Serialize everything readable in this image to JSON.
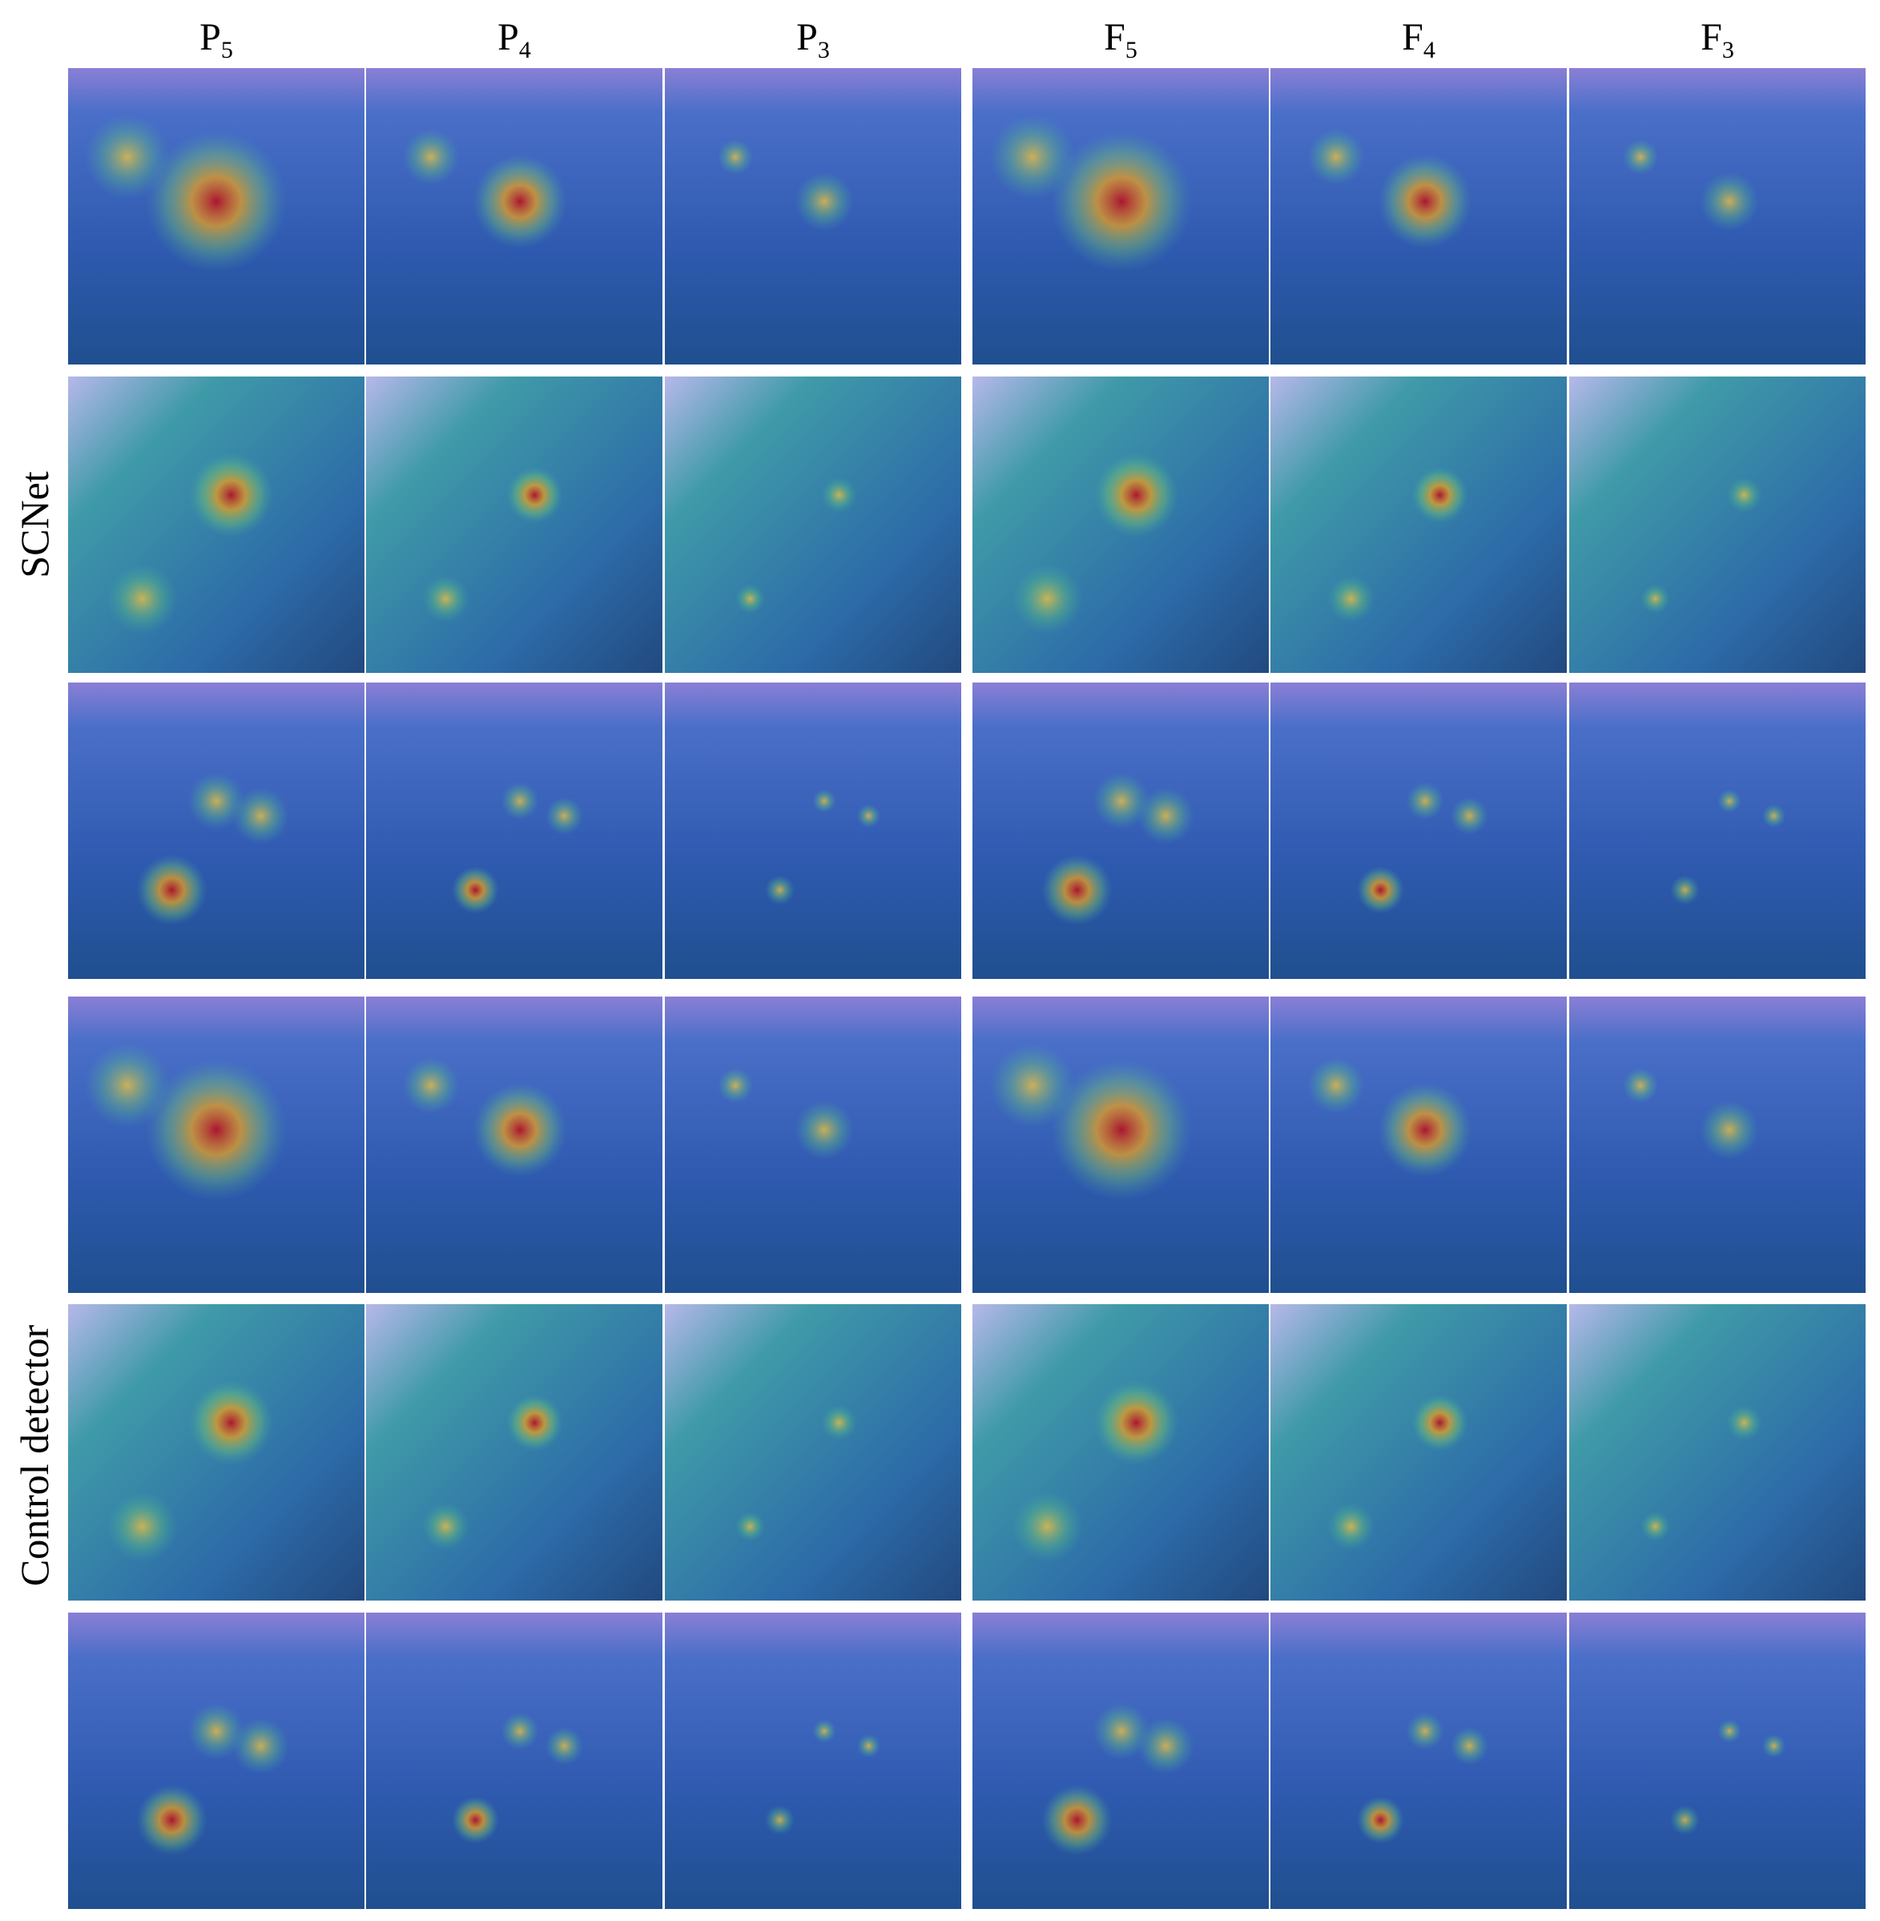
{
  "columns": [
    {
      "base": "P",
      "sub": "5"
    },
    {
      "base": "P",
      "sub": "4"
    },
    {
      "base": "P",
      "sub": "3"
    },
    {
      "base": "F",
      "sub": "5"
    },
    {
      "base": "F",
      "sub": "4"
    },
    {
      "base": "F",
      "sub": "3"
    }
  ],
  "row_groups": [
    "SCNet",
    "Control detector"
  ]
}
